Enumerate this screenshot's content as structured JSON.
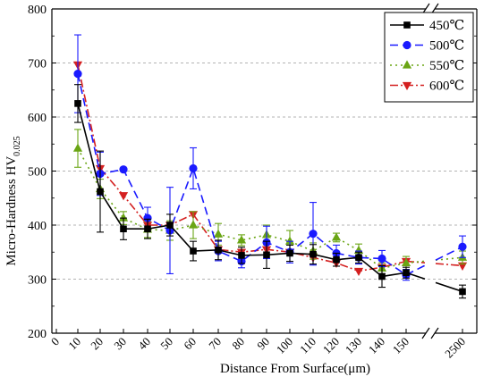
{
  "chart_data": {
    "type": "line",
    "xlabel": "Distance From Surface(μm)",
    "ylabel_main": "Micro-Hardness HV",
    "ylabel_sub": "0.025",
    "ylim": [
      200,
      800
    ],
    "yticks": [
      200,
      300,
      400,
      500,
      600,
      700,
      800
    ],
    "grid": "horizontal dashed",
    "legend_position": "top-right",
    "x_tick_labels": [
      "0",
      "10",
      "20",
      "30",
      "40",
      "50",
      "60",
      "70",
      "80",
      "90",
      "100",
      "110",
      "120",
      "130",
      "140",
      "150",
      "2500"
    ],
    "x": [
      10,
      20,
      30,
      40,
      50,
      60,
      70,
      80,
      90,
      100,
      110,
      120,
      130,
      140,
      150,
      2500
    ],
    "series": [
      {
        "name": "450℃",
        "color": "#000000",
        "dash": "solid",
        "marker": "square",
        "values": [
          625,
          462,
          393,
          393,
          400,
          352,
          354,
          344,
          345,
          348,
          346,
          336,
          340,
          305,
          312,
          277
        ],
        "errors": [
          35,
          75,
          20,
          18,
          20,
          18,
          18,
          15,
          25,
          15,
          18,
          12,
          10,
          20,
          10,
          12
        ]
      },
      {
        "name": "500℃",
        "color": "#1a1aff",
        "dash": "9,5",
        "marker": "circle",
        "values": [
          680,
          495,
          503,
          413,
          390,
          505,
          352,
          333,
          368,
          350,
          384,
          348,
          340,
          338,
          308,
          360
        ],
        "errors": [
          72,
          40,
          0,
          20,
          80,
          38,
          18,
          12,
          30,
          20,
          58,
          15,
          12,
          15,
          10,
          20
        ]
      },
      {
        "name": "550℃",
        "color": "#6aa514",
        "dash": "2,4",
        "marker": "triangle-up",
        "values": [
          542,
          467,
          413,
          392,
          390,
          400,
          383,
          372,
          382,
          370,
          352,
          377,
          353,
          320,
          330,
          340
        ],
        "errors": [
          35,
          18,
          12,
          15,
          18,
          25,
          20,
          10,
          18,
          20,
          15,
          8,
          12,
          10,
          12,
          12
        ]
      },
      {
        "name": "600℃",
        "color": "#d42020",
        "dash": "9,3,2,3",
        "marker": "triangle-down",
        "values": [
          697,
          505,
          455,
          400,
          400,
          420,
          355,
          350,
          355,
          350,
          340,
          330,
          315,
          322,
          333,
          325
        ]
      }
    ]
  }
}
